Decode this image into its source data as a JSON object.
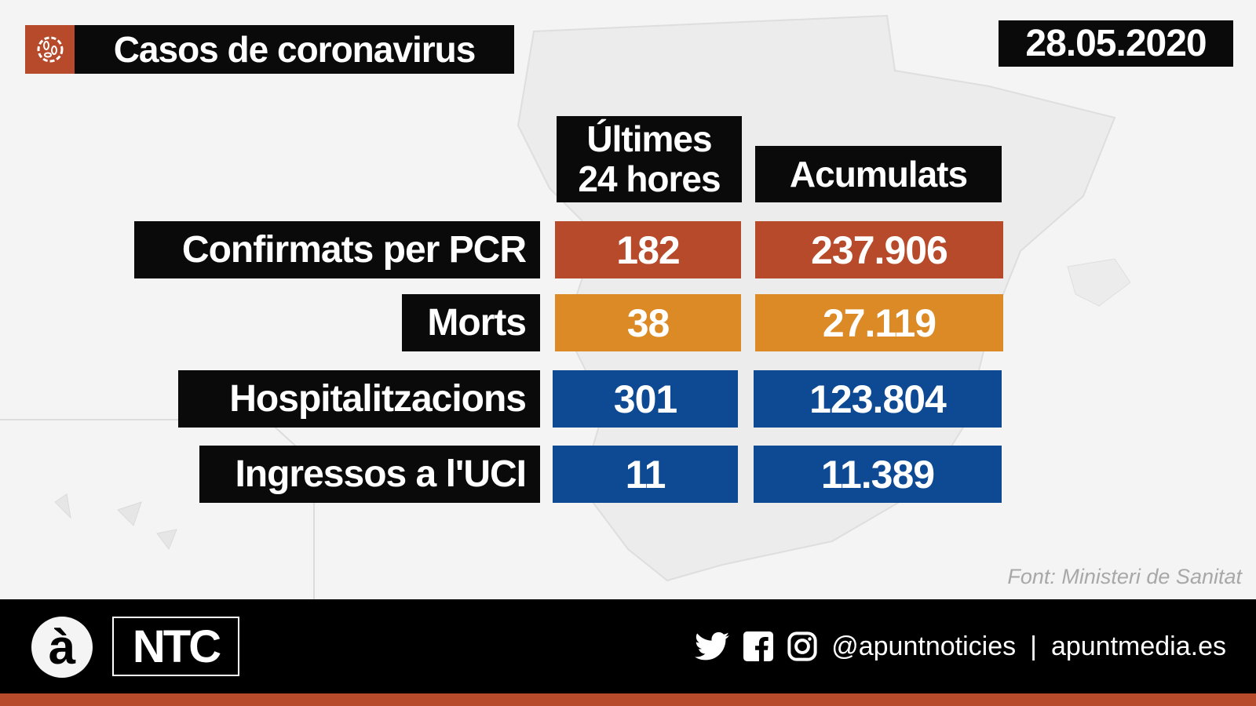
{
  "header": {
    "title": "Casos de coronavirus",
    "date": "28.05.2020",
    "icon": "virus-icon"
  },
  "columns": {
    "last24_line1": "Últimes",
    "last24_line2": "24 hores",
    "cumulative": "Acumulats"
  },
  "rows": [
    {
      "label": "Confirmats per PCR",
      "last24": "182",
      "cumulative": "237.906",
      "color": "#b84a2c"
    },
    {
      "label": "Morts",
      "last24": "38",
      "cumulative": "27.119",
      "color": "#dc8a25"
    },
    {
      "label": "Hospitalitzacions",
      "last24": "301",
      "cumulative": "123.804",
      "color": "#0e4a93"
    },
    {
      "label": "Ingressos a l'UCI",
      "last24": "11",
      "cumulative": "11.389",
      "color": "#0e4a93"
    }
  ],
  "source": "Font: Ministeri de Sanitat",
  "footer": {
    "logo_a": "à",
    "logo_ntc": "NTC",
    "handle": "@apuntnoticies",
    "separator": "|",
    "website": "apuntmedia.es",
    "accent": "#b84a2c"
  }
}
